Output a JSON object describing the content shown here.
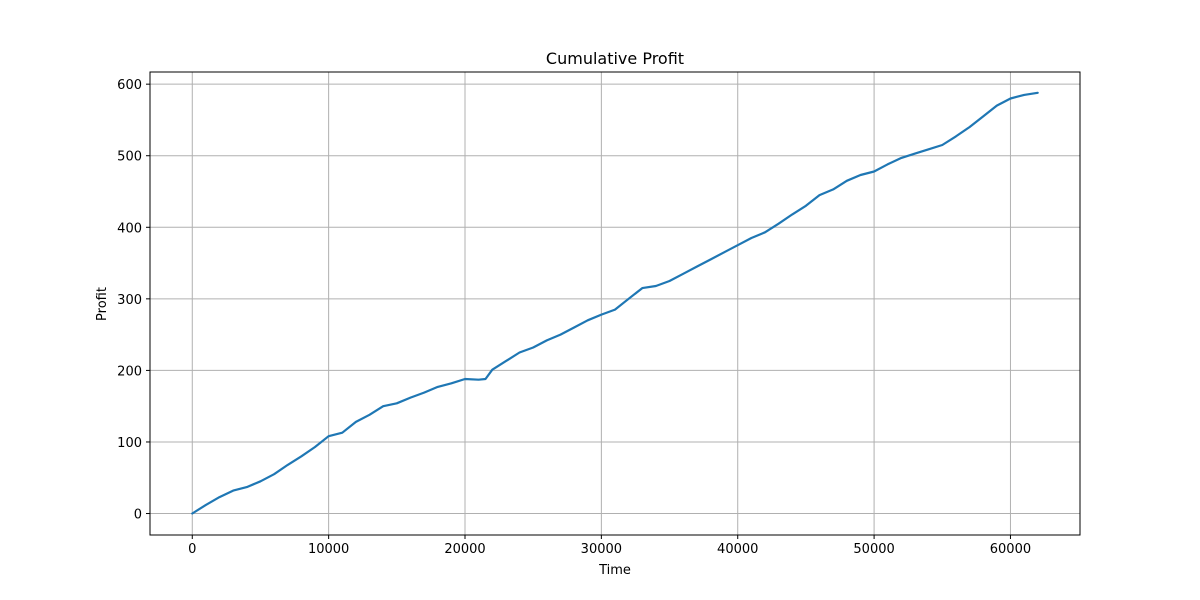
{
  "chart_data": {
    "type": "line",
    "title": "Cumulative Profit",
    "xlabel": "Time",
    "ylabel": "Profit",
    "xlim": [
      -3100,
      65100
    ],
    "ylim": [
      -30,
      617
    ],
    "xticks": [
      0,
      10000,
      20000,
      30000,
      40000,
      50000,
      60000
    ],
    "yticks": [
      0,
      100,
      200,
      300,
      400,
      500,
      600
    ],
    "grid": true,
    "line_color": "#1f77b4",
    "series": [
      {
        "x": [
          0,
          1000,
          2000,
          3000,
          4000,
          5000,
          6000,
          7000,
          8000,
          9000,
          10000,
          11000,
          12000,
          13000,
          14000,
          15000,
          16000,
          17000,
          18000,
          19000,
          20000,
          21000,
          21500,
          22000,
          23000,
          24000,
          25000,
          26000,
          27000,
          28000,
          29000,
          30000,
          31000,
          32000,
          33000,
          34000,
          35000,
          36000,
          37000,
          38000,
          39000,
          40000,
          41000,
          42000,
          43000,
          44000,
          45000,
          46000,
          47000,
          48000,
          49000,
          50000,
          51000,
          52000,
          53000,
          54000,
          55000,
          56000,
          57000,
          58000,
          59000,
          60000,
          61000,
          62000
        ],
        "y": [
          0,
          12,
          23,
          32,
          37,
          45,
          55,
          68,
          80,
          93,
          108,
          113,
          128,
          138,
          150,
          154,
          162,
          169,
          177,
          182,
          188,
          187,
          188,
          201,
          213,
          225,
          232,
          242,
          250,
          260,
          270,
          278,
          285,
          300,
          315,
          318,
          325,
          335,
          345,
          355,
          365,
          375,
          385,
          393,
          405,
          418,
          430,
          445,
          453,
          465,
          473,
          478,
          488,
          497,
          503,
          509,
          515,
          527,
          540,
          555,
          570,
          580,
          585,
          588
        ]
      }
    ]
  }
}
